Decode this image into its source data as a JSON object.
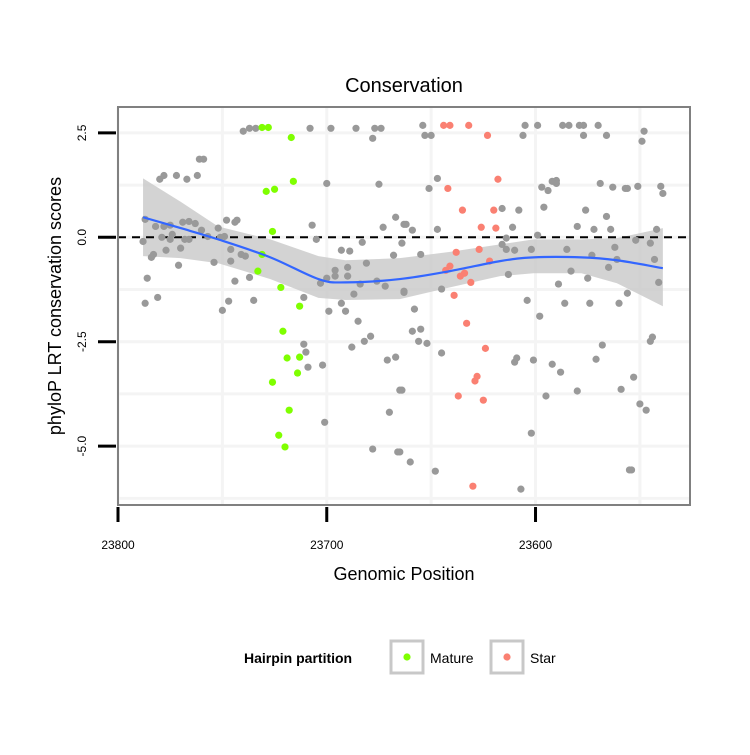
{
  "chart_data": {
    "type": "scatter",
    "title": "Conservation",
    "xlabel": "Genomic Position",
    "ylabel": "phyloP LRT conservation scores",
    "xlim": [
      23800,
      23526
    ],
    "x_reversed": true,
    "ylim": [
      -6.41,
      3.12
    ],
    "x_ticks": [
      23800,
      23700,
      23600
    ],
    "x_tick_labels": [
      "23800",
      "23700",
      "23600"
    ],
    "y_ticks": [
      2.5,
      0,
      -2.5,
      -5
    ],
    "y_tick_labels": [
      "2.5",
      "0.0",
      "-2.5",
      "-5.0"
    ],
    "grid": true,
    "reference_line": {
      "y": 0,
      "style": "dashed"
    },
    "legend": {
      "title": "Hairpin partition",
      "placement": "bottom",
      "entries": [
        "Mature",
        "Star"
      ]
    },
    "colors": {
      "Mature": "#7FFF00",
      "Star": "#FA8072",
      "other": "#999999",
      "fit": "#3366FF",
      "band": "#C8C8C8",
      "border": "#808080"
    },
    "series": [
      {
        "name": "other",
        "points": [
          [
            23740,
            2.54
          ],
          [
            23737,
            2.61
          ],
          [
            23734,
            2.61
          ],
          [
            23708,
            2.61
          ],
          [
            23698,
            2.61
          ],
          [
            23686,
            2.61
          ],
          [
            23677,
            2.61
          ],
          [
            23674,
            2.61
          ],
          [
            23678,
            2.37
          ],
          [
            23761,
            1.87
          ],
          [
            23759,
            1.87
          ],
          [
            23780,
            1.39
          ],
          [
            23778,
            1.48
          ],
          [
            23772,
            1.48
          ],
          [
            23767,
            1.39
          ],
          [
            23762,
            1.48
          ],
          [
            23700,
            1.29
          ],
          [
            23675,
            1.27
          ],
          [
            23787,
            0.43
          ],
          [
            23775,
            0.29
          ],
          [
            23769,
            0.36
          ],
          [
            23766,
            0.38
          ],
          [
            23763,
            0.33
          ],
          [
            23782,
            0.26
          ],
          [
            23778,
            0.26
          ],
          [
            23748,
            0.41
          ],
          [
            23744,
            0.36
          ],
          [
            23743,
            0.41
          ],
          [
            23760,
            0.17
          ],
          [
            23752,
            0.22
          ],
          [
            23707,
            0.29
          ],
          [
            23667,
            0.48
          ],
          [
            23663,
            0.31
          ],
          [
            23673,
            0.24
          ],
          [
            23788,
            -0.1
          ],
          [
            23779,
            0
          ],
          [
            23775,
            -0.05
          ],
          [
            23774,
            0.07
          ],
          [
            23768,
            -0.05
          ],
          [
            23766,
            -0.05
          ],
          [
            23757,
            0.02
          ],
          [
            23751,
            0
          ],
          [
            23749,
            0.02
          ],
          [
            23705,
            -0.05
          ],
          [
            23683,
            -0.12
          ],
          [
            23664,
            -0.14
          ],
          [
            23783,
            -0.41
          ],
          [
            23784,
            -0.48
          ],
          [
            23777,
            -0.31
          ],
          [
            23770,
            -0.26
          ],
          [
            23746,
            -0.29
          ],
          [
            23741,
            -0.41
          ],
          [
            23739,
            -0.45
          ],
          [
            23693,
            -0.31
          ],
          [
            23689,
            -0.33
          ],
          [
            23668,
            -0.43
          ],
          [
            23771,
            -0.67
          ],
          [
            23754,
            -0.6
          ],
          [
            23746,
            -0.57
          ],
          [
            23681,
            -0.62
          ],
          [
            23690,
            -0.72
          ],
          [
            23696,
            -0.79
          ],
          [
            23696,
            -0.93
          ],
          [
            23690,
            -0.93
          ],
          [
            23703,
            -1.1
          ],
          [
            23700,
            -0.98
          ],
          [
            23684,
            -1.12
          ],
          [
            23676,
            -1.05
          ],
          [
            23672,
            -1.17
          ],
          [
            23663,
            -1.29
          ],
          [
            23786,
            -0.98
          ],
          [
            23744,
            -1.05
          ],
          [
            23737,
            -0.96
          ],
          [
            23687,
            -1.36
          ],
          [
            23711,
            -1.44
          ],
          [
            23693,
            -1.58
          ],
          [
            23787,
            -1.58
          ],
          [
            23781,
            -1.44
          ],
          [
            23747,
            -1.53
          ],
          [
            23735,
            -1.51
          ],
          [
            23750,
            -1.75
          ],
          [
            23699,
            -1.77
          ],
          [
            23691,
            -1.77
          ],
          [
            23685,
            -2.01
          ],
          [
            23679,
            -2.37
          ],
          [
            23682,
            -2.49
          ],
          [
            23688,
            -2.63
          ],
          [
            23711,
            -2.56
          ],
          [
            23710,
            -2.75
          ],
          [
            23709,
            -3.11
          ],
          [
            23702,
            -3.06
          ],
          [
            23671,
            -2.94
          ],
          [
            23667,
            -2.87
          ],
          [
            23665,
            -3.66
          ],
          [
            23670,
            -4.19
          ],
          [
            23701,
            -4.43
          ],
          [
            23678,
            -5.07
          ],
          [
            23666,
            -5.14
          ],
          [
            23654,
            2.68
          ],
          [
            23653,
            2.44
          ],
          [
            23650,
            2.44
          ],
          [
            23605,
            2.68
          ],
          [
            23599,
            2.68
          ],
          [
            23587,
            2.68
          ],
          [
            23584,
            2.68
          ],
          [
            23579,
            2.68
          ],
          [
            23577,
            2.68
          ],
          [
            23570,
            2.68
          ],
          [
            23606,
            2.44
          ],
          [
            23577,
            2.44
          ],
          [
            23566,
            2.44
          ],
          [
            23548,
            2.54
          ],
          [
            23549,
            2.3
          ],
          [
            23647,
            1.41
          ],
          [
            23651,
            1.17
          ],
          [
            23597,
            1.2
          ],
          [
            23594,
            1.12
          ],
          [
            23592,
            1.34
          ],
          [
            23590,
            1.36
          ],
          [
            23590,
            1.29
          ],
          [
            23569,
            1.29
          ],
          [
            23563,
            1.2
          ],
          [
            23557,
            1.17
          ],
          [
            23556,
            1.17
          ],
          [
            23551,
            1.22
          ],
          [
            23540,
            1.22
          ],
          [
            23539,
            1.05
          ],
          [
            23616,
            0.69
          ],
          [
            23608,
            0.65
          ],
          [
            23596,
            0.72
          ],
          [
            23576,
            0.65
          ],
          [
            23566,
            0.5
          ],
          [
            23662,
            0.31
          ],
          [
            23659,
            0.17
          ],
          [
            23647,
            0.19
          ],
          [
            23611,
            0.24
          ],
          [
            23580,
            0.26
          ],
          [
            23572,
            0.19
          ],
          [
            23564,
            0.19
          ],
          [
            23542,
            0.19
          ],
          [
            23614,
            -0.02
          ],
          [
            23616,
            -0.17
          ],
          [
            23614,
            -0.29
          ],
          [
            23610,
            -0.31
          ],
          [
            23599,
            0.05
          ],
          [
            23602,
            -0.29
          ],
          [
            23585,
            -0.29
          ],
          [
            23552,
            -0.07
          ],
          [
            23545,
            -0.14
          ],
          [
            23562,
            -0.24
          ],
          [
            23655,
            -0.41
          ],
          [
            23573,
            -0.43
          ],
          [
            23561,
            -0.53
          ],
          [
            23543,
            -0.53
          ],
          [
            23565,
            -0.72
          ],
          [
            23583,
            -0.81
          ],
          [
            23613,
            -0.89
          ],
          [
            23575,
            -0.98
          ],
          [
            23541,
            -1.08
          ],
          [
            23589,
            -1.12
          ],
          [
            23556,
            -1.34
          ],
          [
            23663,
            -1.32
          ],
          [
            23645,
            -1.24
          ],
          [
            23604,
            -1.51
          ],
          [
            23586,
            -1.58
          ],
          [
            23574,
            -1.58
          ],
          [
            23560,
            -1.58
          ],
          [
            23658,
            -1.72
          ],
          [
            23598,
            -1.89
          ],
          [
            23659,
            -2.25
          ],
          [
            23655,
            -2.2
          ],
          [
            23656,
            -2.49
          ],
          [
            23652,
            -2.54
          ],
          [
            23645,
            -2.77
          ],
          [
            23610,
            -2.99
          ],
          [
            23609,
            -2.89
          ],
          [
            23601,
            -2.94
          ],
          [
            23592,
            -3.04
          ],
          [
            23588,
            -3.23
          ],
          [
            23568,
            -2.58
          ],
          [
            23571,
            -2.92
          ],
          [
            23553,
            -3.35
          ],
          [
            23544,
            -2.39
          ],
          [
            23545,
            -2.49
          ],
          [
            23664,
            -3.66
          ],
          [
            23595,
            -3.8
          ],
          [
            23580,
            -3.68
          ],
          [
            23559,
            -3.64
          ],
          [
            23550,
            -3.99
          ],
          [
            23547,
            -4.14
          ],
          [
            23602,
            -4.69
          ],
          [
            23665,
            -5.14
          ],
          [
            23660,
            -5.38
          ],
          [
            23648,
            -5.6
          ],
          [
            23607,
            -6.03
          ],
          [
            23555,
            -5.57
          ],
          [
            23554,
            -5.57
          ]
        ]
      },
      {
        "name": "Mature",
        "points": [
          [
            23731,
            2.63
          ],
          [
            23728,
            2.63
          ],
          [
            23717,
            2.39
          ],
          [
            23725,
            1.15
          ],
          [
            23729,
            1.1
          ],
          [
            23716,
            1.34
          ],
          [
            23726,
            0.14
          ],
          [
            23731,
            -0.41
          ],
          [
            23733,
            -0.81
          ],
          [
            23722,
            -1.2
          ],
          [
            23713,
            -1.65
          ],
          [
            23721,
            -2.25
          ],
          [
            23719,
            -2.89
          ],
          [
            23713,
            -2.87
          ],
          [
            23714,
            -3.25
          ],
          [
            23726,
            -3.47
          ],
          [
            23718,
            -4.14
          ],
          [
            23723,
            -4.74
          ],
          [
            23720,
            -5.02
          ]
        ]
      },
      {
        "name": "Star",
        "points": [
          [
            23644,
            2.68
          ],
          [
            23641,
            2.68
          ],
          [
            23632,
            2.68
          ],
          [
            23623,
            2.44
          ],
          [
            23618,
            1.39
          ],
          [
            23642,
            1.17
          ],
          [
            23635,
            0.65
          ],
          [
            23620,
            0.65
          ],
          [
            23626,
            0.24
          ],
          [
            23619,
            0.22
          ],
          [
            23638,
            -0.36
          ],
          [
            23627,
            -0.29
          ],
          [
            23622,
            -0.57
          ],
          [
            23641,
            -0.69
          ],
          [
            23643,
            -0.79
          ],
          [
            23634,
            -0.86
          ],
          [
            23636,
            -0.93
          ],
          [
            23631,
            -1.08
          ],
          [
            23639,
            -1.39
          ],
          [
            23633,
            -2.06
          ],
          [
            23624,
            -2.66
          ],
          [
            23628,
            -3.33
          ],
          [
            23629,
            -3.44
          ],
          [
            23637,
            -3.8
          ],
          [
            23625,
            -3.9
          ],
          [
            23630,
            -5.96
          ]
        ]
      }
    ],
    "smooth_fit": {
      "x": [
        23788,
        23770,
        23752,
        23727,
        23704,
        23691,
        23665,
        23641,
        23617,
        23601,
        23578,
        23561,
        23539
      ],
      "y": [
        0.48,
        0.22,
        -0.05,
        -0.48,
        -1.0,
        -1.08,
        -1.0,
        -0.81,
        -0.57,
        -0.48,
        -0.48,
        -0.55,
        -0.74
      ],
      "lower": [
        -0.45,
        -0.5,
        -0.62,
        -1.0,
        -1.45,
        -1.5,
        -1.48,
        -1.2,
        -0.93,
        -0.86,
        -0.86,
        -1.1,
        -1.65
      ],
      "upper": [
        1.41,
        0.85,
        0.26,
        -0.05,
        -0.45,
        -0.55,
        -0.5,
        -0.35,
        -0.17,
        -0.05,
        -0.05,
        -0.02,
        0.22
      ]
    }
  }
}
